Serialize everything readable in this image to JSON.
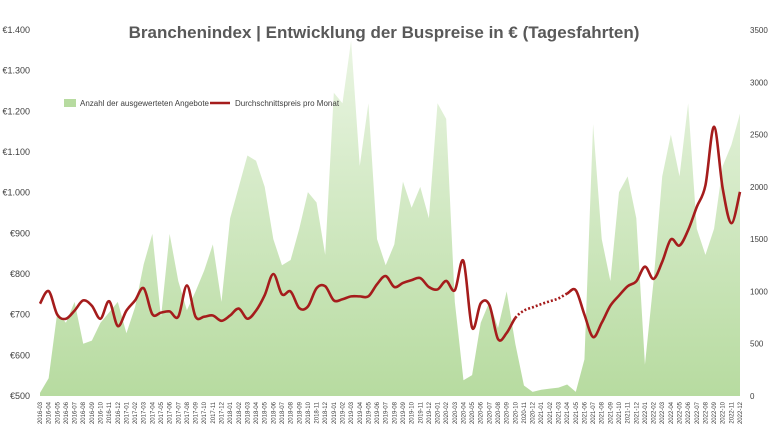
{
  "chart_data": {
    "type": "area+line",
    "title": "Branchenindex | Entwicklung der Buspreise in € (Tagesfahrten)",
    "legend": {
      "placement": "top-left",
      "area_label": "Anzahl der ausgewerteten Angebote",
      "line_label": "Durchschnittspreis pro Monat"
    },
    "colors": {
      "area": "#b7dba0",
      "line": "#a51c1c",
      "text": "#595959"
    },
    "y_left": {
      "ylim": [
        500,
        1400
      ],
      "ticks": [
        "€500",
        "€600",
        "€700",
        "€800",
        "€900",
        "€1.000",
        "€1.100",
        "€1.200",
        "€1.300",
        "€1.400"
      ]
    },
    "y_right": {
      "ylim": [
        0,
        3500
      ],
      "ticks": [
        "0",
        "500",
        "1000",
        "1500",
        "2000",
        "2500",
        "3000",
        "3500"
      ]
    },
    "grid": false,
    "x": [
      "2016-03",
      "2016-04",
      "2016-05",
      "2016-06",
      "2016-07",
      "2016-08",
      "2016-09",
      "2016-10",
      "2016-11",
      "2016-12",
      "2017-01",
      "2017-02",
      "2017-03",
      "2017-04",
      "2017-05",
      "2017-06",
      "2017-07",
      "2017-08",
      "2017-09",
      "2017-10",
      "2017-11",
      "2017-12",
      "2018-01",
      "2018-02",
      "2018-03",
      "2018-04",
      "2018-05",
      "2018-06",
      "2018-07",
      "2018-08",
      "2018-09",
      "2018-10",
      "2018-11",
      "2018-12",
      "2019-01",
      "2019-02",
      "2019-03",
      "2019-04",
      "2019-05",
      "2019-06",
      "2019-07",
      "2019-08",
      "2019-09",
      "2019-10",
      "2019-11",
      "2019-12",
      "2020-01",
      "2020-02",
      "2020-03",
      "2020-04",
      "2020-05",
      "2020-06",
      "2020-07",
      "2020-08",
      "2020-09",
      "2020-10",
      "2020-11",
      "2020-12",
      "2021-01",
      "2021-02",
      "2021-03",
      "2021-04",
      "2021-05",
      "2021-06",
      "2021-07",
      "2021-08",
      "2021-09",
      "2021-10",
      "2021-11",
      "2021-12",
      "2022-01",
      "2022-02",
      "2022-03",
      "2022-04",
      "2022-05",
      "2022-06",
      "2022-07",
      "2022-08",
      "2022-09",
      "2022-10",
      "2022-11",
      "2022-12"
    ],
    "series": [
      {
        "name": "Anzahl der ausgewerteten Angebote",
        "axis": "right",
        "kind": "area",
        "values": [
          30,
          170,
          800,
          700,
          900,
          500,
          530,
          700,
          800,
          900,
          600,
          850,
          1260,
          1550,
          750,
          1550,
          1100,
          820,
          1000,
          1200,
          1450,
          900,
          1700,
          2000,
          2300,
          2250,
          2000,
          1500,
          1250,
          1300,
          1600,
          1950,
          1850,
          1350,
          2900,
          2800,
          3400,
          2200,
          2800,
          1500,
          1250,
          1450,
          2050,
          1800,
          2000,
          1700,
          2800,
          2650,
          900,
          150,
          200,
          700,
          900,
          650,
          1000,
          500,
          100,
          40,
          60,
          70,
          80,
          110,
          40,
          350,
          2600,
          1500,
          1100,
          1950,
          2100,
          1700,
          300,
          1100,
          2100,
          2500,
          2100,
          2800,
          1600,
          1350,
          1600,
          2200,
          2400,
          2700
        ]
      },
      {
        "name": "Durchschnittspreis pro Monat",
        "axis": "left",
        "kind": "line",
        "values": [
          727,
          758,
          700,
          690,
          710,
          735,
          722,
          690,
          733,
          672,
          710,
          735,
          765,
          701,
          705,
          708,
          695,
          772,
          695,
          695,
          698,
          685,
          698,
          715,
          690,
          710,
          748,
          800,
          750,
          757,
          716,
          720,
          765,
          770,
          735,
          738,
          745,
          745,
          745,
          775,
          795,
          768,
          778,
          785,
          790,
          768,
          762,
          783,
          760,
          832,
          668,
          728,
          724,
          640,
          655,
          692,
          710,
          718,
          726,
          733,
          740,
          752,
          760,
          700,
          645,
          680,
          722,
          747,
          770,
          782,
          818,
          788,
          830,
          885,
          870,
          908,
          965,
          1018,
          1162,
          1010,
          925,
          1002
        ],
        "dotted_range": [
          "2020-10",
          "2021-04"
        ]
      }
    ]
  }
}
